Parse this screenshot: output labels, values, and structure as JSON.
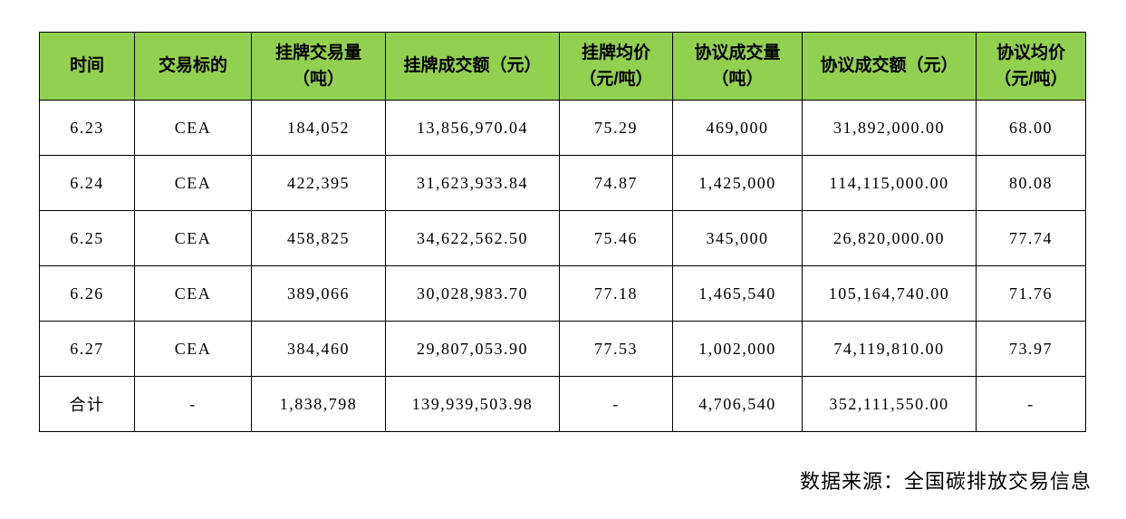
{
  "chart_data": {
    "type": "table",
    "columns": [
      "时间",
      "交易标的",
      "挂牌交易量\n（吨）",
      "挂牌成交额（元）",
      "挂牌均价\n（元/吨）",
      "协议成交量\n（吨）",
      "协议成交额（元）",
      "协议均价\n（元/吨）"
    ],
    "rows": [
      [
        "6.23",
        "CEA",
        "184,052",
        "13,856,970.04",
        "75.29",
        "469,000",
        "31,892,000.00",
        "68.00"
      ],
      [
        "6.24",
        "CEA",
        "422,395",
        "31,623,933.84",
        "74.87",
        "1,425,000",
        "114,115,000.00",
        "80.08"
      ],
      [
        "6.25",
        "CEA",
        "458,825",
        "34,622,562.50",
        "75.46",
        "345,000",
        "26,820,000.00",
        "77.74"
      ],
      [
        "6.26",
        "CEA",
        "389,066",
        "30,028,983.70",
        "77.18",
        "1,465,540",
        "105,164,740.00",
        "71.76"
      ],
      [
        "6.27",
        "CEA",
        "384,460",
        "29,807,053.90",
        "77.53",
        "1,002,000",
        "74,119,810.00",
        "73.97"
      ]
    ],
    "total_row": [
      "合计",
      "-",
      "1,838,798",
      "139,939,503.98",
      "-",
      "4,706,540",
      "352,111,550.00",
      "-"
    ],
    "source_note": "数据来源：全国碳排放交易信息"
  },
  "styles": {
    "header_bg": "#92D050",
    "border_color": "#000000",
    "text_color": "#000000",
    "page_bg": "#FFFFFF"
  }
}
